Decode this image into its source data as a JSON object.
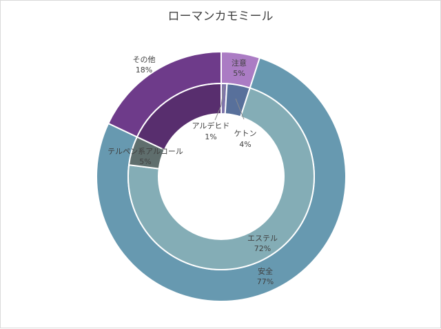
{
  "chart_data": {
    "type": "pie",
    "subtype": "doughnut",
    "title": "ローマンカモミール",
    "rings": [
      {
        "name": "outer",
        "slices": [
          {
            "label": "注意",
            "value": 5,
            "percent_label": "5%",
            "color": "#ab7cc4"
          },
          {
            "label": "安全",
            "value": 77,
            "percent_label": "77%",
            "color": "#6799b0"
          },
          {
            "label": "その他",
            "value": 18,
            "percent_label": "18%",
            "color": "#6e3b8a"
          }
        ]
      },
      {
        "name": "inner",
        "slices": [
          {
            "label": "アルデヒド",
            "value": 1,
            "percent_label": "1%",
            "color": "#7e74aa"
          },
          {
            "label": "ケトン",
            "value": 4,
            "percent_label": "4%",
            "color": "#58709b"
          },
          {
            "label": "エステル",
            "value": 72,
            "percent_label": "72%",
            "color": "#84adb6"
          },
          {
            "label": "テルペン系アルコール",
            "value": 5,
            "percent_label": "5%",
            "color": "#5f6e6d"
          },
          {
            "label": "その他",
            "value": 18,
            "percent_label": "18%",
            "color": "#582e6e"
          }
        ]
      }
    ]
  }
}
